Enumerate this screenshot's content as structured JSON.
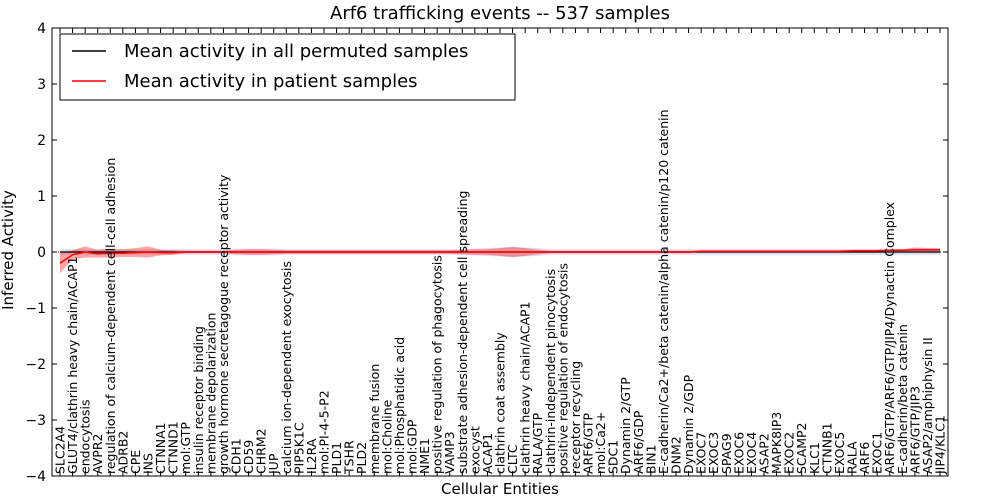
{
  "chart_data": {
    "type": "line",
    "title": "Arf6 trafficking events -- 537 samples",
    "xlabel": "Cellular Entities",
    "ylabel": "Inferred Activity",
    "ylim": [
      -4,
      4
    ],
    "yticks": [
      -4,
      -3,
      -2,
      -1,
      0,
      1,
      2,
      3,
      4
    ],
    "legend_position": "top-left",
    "categories": [
      "SLC2A4",
      "GLUT4/clathrin heavy chain/ACAP1",
      "endocytosis",
      "AVPR2",
      "regulation of calcium-dependent cell-cell adhesion",
      "ADRB2",
      "CPE",
      "INS",
      "CTNNA1",
      "CTNND1",
      "mol:GTP",
      "insulin receptor binding",
      "membrane depolarization",
      "growth hormone secretagogue receptor activity",
      "CDH1",
      "CD59",
      "CHRM2",
      "JUP",
      "calcium ion-dependent exocytosis",
      "PIP5K1C",
      "IL2RA",
      "mol:PI-4-5-P2",
      "PLD1",
      "TSHR",
      "PLD2",
      "membrane fusion",
      "mol:Choline",
      "mol:Phosphatidic acid",
      "mol:GDP",
      "NME1",
      "positive regulation of phagocytosis",
      "VAMP3",
      "substrate adhesion-dependent cell spreading",
      "exocyst",
      "ACAP1",
      "clathrin coat assembly",
      "CLTC",
      "clathrin heavy chain/ACAP1",
      "RALA/GTP",
      "clathrin-independent pinocytosis",
      "positive regulation of endocytosis",
      "receptor recycling",
      "ARF6/GTP",
      "mol:Ca2+",
      "SDC1",
      "Dynamin 2/GTP",
      "ARF6/GDP",
      "BIN1",
      "E-cadherin/Ca2+/beta catenin/alpha catenin/p120 catenin",
      "DNM2",
      "Dynamin 2/GDP",
      "EXOC7",
      "EXOC3",
      "SPAG9",
      "EXOC6",
      "EXOC4",
      "ASAP2",
      "MAPK8IP3",
      "EXOC2",
      "SCAMP2",
      "KLC1",
      "CTNNB1",
      "EXOC5",
      "RALA",
      "ARF6",
      "EXOC1",
      "ARF6/GTP/ARF6/GTP/JIP4/Dynactin Complex",
      "E-cadherin/beta catenin",
      "ARF6/GTP/JIP3",
      "ASAP2/amphiphysin II",
      "JIP4/KLC1"
    ],
    "series": [
      {
        "name": "Mean activity in all permuted samples",
        "color": "#000000",
        "values": [
          0,
          0,
          0,
          0,
          0,
          0,
          0,
          0,
          0,
          0,
          0,
          0,
          0,
          0,
          0,
          0,
          0,
          0,
          0,
          0,
          0,
          0,
          0,
          0,
          0,
          0,
          0,
          0,
          0,
          0,
          0,
          0,
          0,
          0,
          0,
          0,
          0,
          0,
          0,
          0,
          0,
          0,
          0,
          0,
          0,
          0,
          0,
          0,
          0,
          0,
          0,
          0,
          0,
          0,
          0,
          0,
          0,
          0,
          0,
          0,
          0,
          0,
          0,
          0,
          0,
          0,
          0,
          0,
          0,
          0,
          0
        ],
        "band": [
          0.05,
          0.05,
          0.05,
          0.05,
          0.05,
          0.05,
          0.05,
          0.05,
          0.05,
          0.05,
          0.05,
          0.05,
          0.05,
          0.05,
          0.06,
          0.06,
          0.06,
          0.06,
          0.05,
          0.05,
          0.05,
          0.05,
          0.05,
          0.05,
          0.05,
          0.05,
          0.05,
          0.05,
          0.05,
          0.05,
          0.05,
          0.05,
          0.05,
          0.06,
          0.07,
          0.08,
          0.09,
          0.08,
          0.07,
          0.05,
          0.05,
          0.05,
          0.05,
          0.05,
          0.05,
          0.05,
          0.05,
          0.05,
          0.05,
          0.05,
          0.05,
          0.05,
          0.05,
          0.05,
          0.05,
          0.05,
          0.05,
          0.05,
          0.05,
          0.05,
          0.05,
          0.05,
          0.05,
          0.05,
          0.05,
          0.05,
          0.05,
          0.05,
          0.05,
          0.05,
          0.05
        ]
      },
      {
        "name": "Mean activity in patient samples",
        "color": "#ff0000",
        "values": [
          -0.2,
          -0.05,
          0.0,
          -0.03,
          -0.02,
          -0.02,
          -0.01,
          0.0,
          -0.01,
          -0.01,
          0,
          0,
          0,
          0,
          0,
          0,
          0,
          0,
          0,
          0,
          0,
          0,
          0,
          0,
          0,
          0,
          0,
          0,
          0,
          0,
          0,
          0,
          0,
          0,
          0,
          0,
          0,
          0,
          0,
          0,
          0,
          0,
          0,
          0,
          0,
          0,
          0,
          0,
          0,
          0,
          0,
          0.01,
          0.01,
          0.01,
          0.01,
          0.01,
          0.01,
          0.01,
          0.01,
          0.01,
          0.01,
          0.01,
          0.01,
          0.02,
          0.02,
          0.02,
          0.03,
          0.03,
          0.04,
          0.04,
          0.04
        ],
        "band": [
          0.18,
          0.08,
          0.1,
          0.07,
          0.08,
          0.07,
          0.08,
          0.1,
          0.05,
          0.04,
          0.02,
          0.02,
          0.02,
          0.02,
          0.04,
          0.05,
          0.05,
          0.04,
          0.03,
          0.03,
          0.03,
          0.03,
          0.03,
          0.03,
          0.03,
          0.03,
          0.03,
          0.03,
          0.03,
          0.03,
          0.03,
          0.03,
          0.04,
          0.05,
          0.05,
          0.07,
          0.09,
          0.07,
          0.04,
          0.02,
          0.02,
          0.02,
          0.02,
          0.02,
          0.02,
          0.02,
          0.02,
          0.02,
          0.02,
          0.02,
          0.02,
          0.02,
          0.02,
          0.02,
          0.02,
          0.02,
          0.02,
          0.02,
          0.02,
          0.02,
          0.02,
          0.02,
          0.02,
          0.02,
          0.02,
          0.02,
          0.02,
          0.02,
          0.04,
          0.03,
          0.03
        ]
      }
    ]
  }
}
